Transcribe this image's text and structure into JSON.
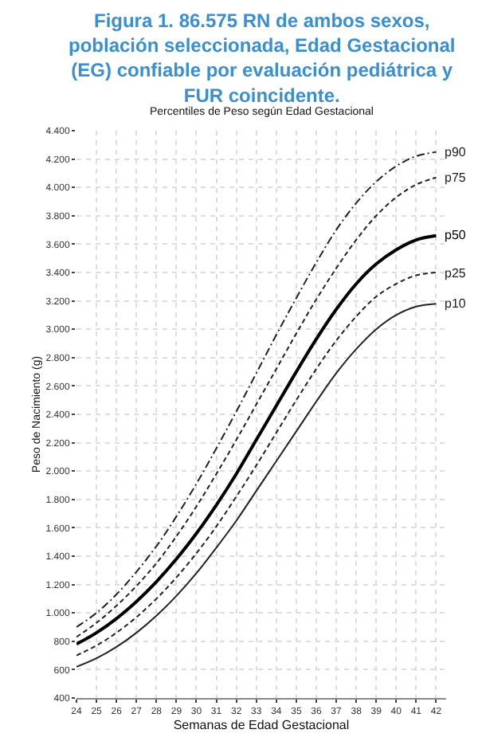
{
  "chart_data": {
    "type": "line",
    "title": "Figura 1. 86.575 RN de ambos sexos, población seleccionada, Edad Gestacional (EG) confiable por evaluación pediátrica y FUR coincidente.",
    "subtitle": "Percentiles de Peso según Edad Gestacional",
    "xlabel": "Semanas de Edad Gestacional",
    "ylabel": "Peso de Nacimiento (g)",
    "x": [
      24,
      25,
      26,
      27,
      28,
      29,
      30,
      31,
      32,
      33,
      34,
      35,
      36,
      37,
      38,
      39,
      40,
      41,
      42
    ],
    "series": [
      {
        "name": "p90",
        "color": "#222222",
        "line_style": "dashdot",
        "values": [
          900,
          1000,
          1130,
          1290,
          1470,
          1680,
          1910,
          2160,
          2420,
          2690,
          2960,
          3220,
          3470,
          3700,
          3890,
          4040,
          4150,
          4220,
          4250
        ]
      },
      {
        "name": "p75",
        "color": "#222222",
        "line_style": "dashed",
        "values": [
          830,
          930,
          1050,
          1190,
          1350,
          1540,
          1750,
          1980,
          2220,
          2470,
          2720,
          2970,
          3210,
          3430,
          3630,
          3800,
          3930,
          4020,
          4070
        ]
      },
      {
        "name": "p50",
        "color": "#000000",
        "line_style": "solid",
        "values": [
          780,
          860,
          960,
          1080,
          1220,
          1380,
          1560,
          1760,
          1980,
          2220,
          2460,
          2700,
          2930,
          3140,
          3320,
          3460,
          3560,
          3630,
          3660
        ]
      },
      {
        "name": "p25",
        "color": "#222222",
        "line_style": "dashed",
        "values": [
          700,
          770,
          860,
          970,
          1100,
          1250,
          1420,
          1610,
          1820,
          2040,
          2270,
          2500,
          2720,
          2920,
          3090,
          3230,
          3320,
          3380,
          3400
        ]
      },
      {
        "name": "p10",
        "color": "#222222",
        "line_style": "solid",
        "values": [
          620,
          680,
          760,
          860,
          980,
          1120,
          1280,
          1460,
          1650,
          1860,
          2070,
          2280,
          2490,
          2690,
          2860,
          3000,
          3100,
          3160,
          3180
        ]
      }
    ],
    "xlim": [
      24,
      42.5
    ],
    "xticks": [
      24,
      25,
      26,
      27,
      28,
      29,
      30,
      31,
      32,
      33,
      34,
      35,
      36,
      37,
      38,
      39,
      40,
      41,
      42
    ],
    "ylim": [
      400,
      4400
    ],
    "yticks": [
      {
        "value": 400,
        "label": "400"
      },
      {
        "value": 600,
        "label": "600"
      },
      {
        "value": 800,
        "label": "800"
      },
      {
        "value": 1000,
        "label": "1.000"
      },
      {
        "value": 1200,
        "label": "1.200"
      },
      {
        "value": 1400,
        "label": "1.400"
      },
      {
        "value": 1600,
        "label": "1.600"
      },
      {
        "value": 1800,
        "label": "1.800"
      },
      {
        "value": 2000,
        "label": "2.000"
      },
      {
        "value": 2200,
        "label": "2.200"
      },
      {
        "value": 2400,
        "label": "2.400"
      },
      {
        "value": 2600,
        "label": "2.600"
      },
      {
        "value": 2800,
        "label": "2.800"
      },
      {
        "value": 3000,
        "label": "3.000"
      },
      {
        "value": 3200,
        "label": "3.200"
      },
      {
        "value": 3400,
        "label": "3.400"
      },
      {
        "value": 3600,
        "label": "3.600"
      },
      {
        "value": 3800,
        "label": "3.800"
      },
      {
        "value": 4000,
        "label": "4.000"
      },
      {
        "value": 4200,
        "label": "4.200"
      },
      {
        "value": 4400,
        "label": "4.400"
      }
    ],
    "grid": true,
    "legend": false,
    "marker": "none"
  }
}
